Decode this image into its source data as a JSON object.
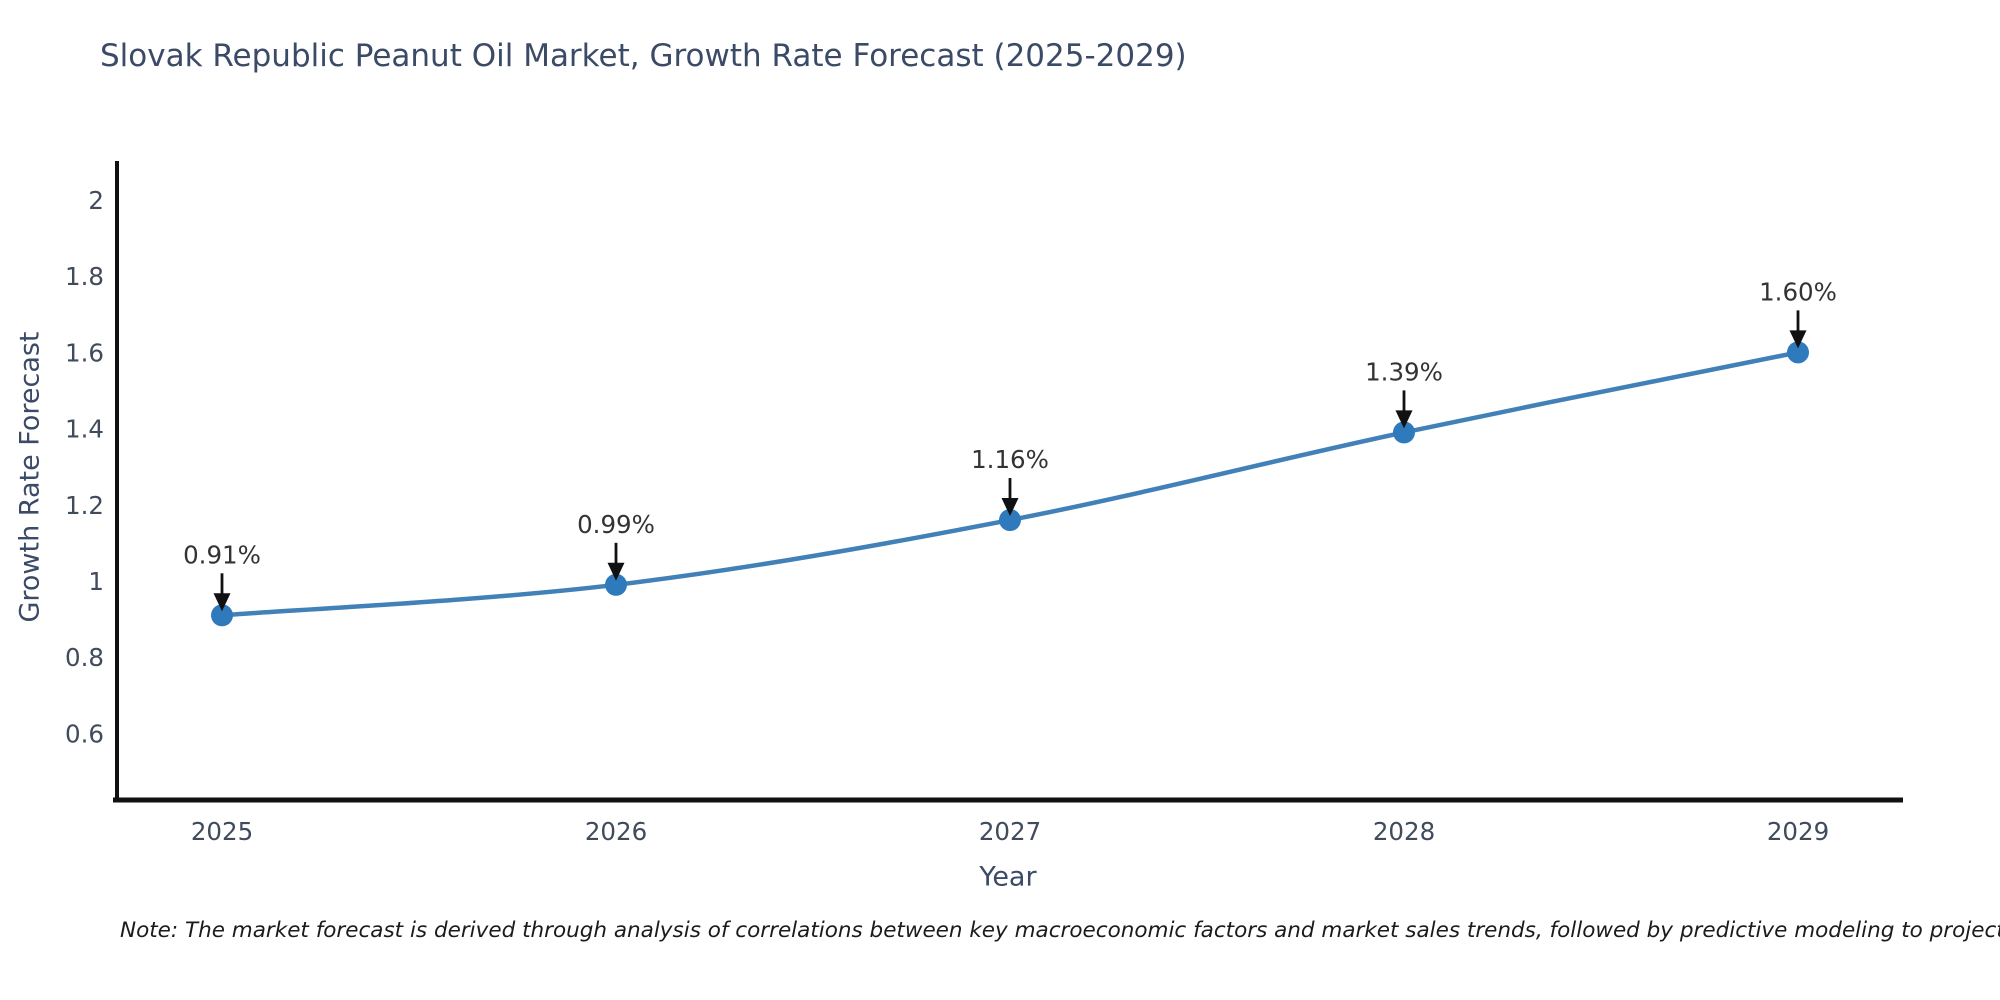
{
  "note": "Note: The market forecast is derived through analysis of correlations between key macroeconomic factors and market sales trends, followed by predictive modeling to project future sales",
  "chart_data": {
    "type": "line",
    "title": "Slovak Republic Peanut Oil Market, Growth Rate Forecast (2025-2029)",
    "xlabel": "Year",
    "ylabel": "Growth Rate Forecast",
    "series_name": "Growth Rate Forecast",
    "x": [
      2025,
      2026,
      2027,
      2028,
      2029
    ],
    "y": [
      0.91,
      0.99,
      1.16,
      1.39,
      1.6
    ],
    "point_labels": [
      "0.91%",
      "0.99%",
      "1.16%",
      "1.39%",
      "1.60%"
    ],
    "xtick_labels": [
      "2025",
      "2026",
      "2027",
      "2028",
      "2029"
    ],
    "yticks": [
      0.6,
      0.8,
      1.0,
      1.2,
      1.4,
      1.6,
      1.8,
      2.0
    ],
    "ytick_labels": [
      "0.6",
      "0.8",
      "1",
      "1.2",
      "1.4",
      "1.6",
      "1.8",
      "2"
    ],
    "ylim": [
      0.42,
      2.1
    ],
    "xlim": [
      2024.7,
      2029.3
    ],
    "grid": false,
    "legend": "none",
    "annotations": "black arrow pointing down to each data point with percent label above",
    "line_style": "smooth curve with circular markers",
    "colors": {
      "line": "#4280b8",
      "marker": "#2f7abc",
      "axis": "#111111",
      "arrow": "#111111",
      "heading_text": "#3b4a66",
      "tick_text": "#404b5c",
      "annotation_text": "#333333",
      "background": "#ffffff"
    }
  }
}
